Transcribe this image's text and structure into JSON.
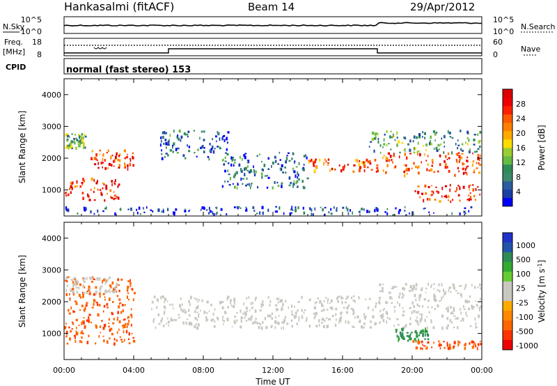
{
  "header": {
    "station": "Hankasalmi (fitACF)",
    "beam": "Beam 14",
    "date": "29/Apr/2012"
  },
  "strip_labels": {
    "nsky": "N.Sky",
    "nsearch": "N.Search",
    "freq_1": "Freq.",
    "freq_2": "[MHz]",
    "nave": "Nave",
    "cpid": "CPID",
    "program": "normal (fast stereo) 153",
    "nsky_ticks": [
      "10^5",
      "10^0"
    ],
    "nsearch_ticks": [
      "10^5",
      "10^0"
    ],
    "freq_ticks": [
      "18",
      "8"
    ],
    "nave_ticks": [
      "60",
      "0"
    ]
  },
  "colorbars": {
    "power": {
      "label": "Power [dB]",
      "ticks": [
        "28",
        "24",
        "20",
        "16",
        "12",
        "8",
        "4"
      ],
      "colors": [
        "#0000ff",
        "#1a3fa5",
        "#2a5d9e",
        "#3b8a6b",
        "#2e8b57",
        "#66bb44",
        "#9acd32",
        "#ffdd00",
        "#ffaa00",
        "#ff8000",
        "#ff5a00",
        "#ff2000",
        "#ee0000",
        "#dd0000"
      ]
    },
    "velocity": {
      "label": "Velocity [m s",
      "label_sup": "-1",
      "label_end": "]",
      "ticks": [
        "1000",
        "500",
        "100",
        "25",
        "-25",
        "-100",
        "-500",
        "-1000"
      ],
      "colors": [
        "#2233cc",
        "#2255aa",
        "#2e8b57",
        "#33aa33",
        "#66cc33",
        "#c8c8c0",
        "#c8c8c0",
        "#ffaa00",
        "#ff8800",
        "#ff6600",
        "#ff3300",
        "#ee0000"
      ]
    }
  },
  "chart_data": [
    {
      "type": "heatmap",
      "name": "power-panel",
      "xlabel": "",
      "ylabel": "Slant Range [km]",
      "xlim": [
        0,
        24
      ],
      "ylim": [
        180,
        4500
      ],
      "yticks": [
        "1000",
        "2000",
        "3000",
        "4000"
      ],
      "xticks": [
        "00:00",
        "04:00",
        "08:00",
        "12:00",
        "16:00",
        "20:00",
        "00:00"
      ],
      "regions": [
        {
          "name": "early-evening-layer",
          "t": [
            0.0,
            1.2
          ],
          "r": [
            2350,
            2800
          ],
          "level": 0.35
        },
        {
          "name": "early-near-range-echo",
          "t": [
            0.0,
            3.2
          ],
          "r": [
            700,
            1400
          ],
          "level": 0.85
        },
        {
          "name": "early-mid-echo",
          "t": [
            1.5,
            4.0
          ],
          "r": [
            1700,
            2300
          ],
          "level": 0.8
        },
        {
          "name": "night-scatter",
          "t": [
            5.5,
            9.5
          ],
          "r": [
            2000,
            2900
          ],
          "level": 0.15
        },
        {
          "name": "midday-band",
          "t": [
            9.0,
            14.0
          ],
          "r": [
            1100,
            2200
          ],
          "level": 0.2
        },
        {
          "name": "afternoon-band",
          "t": [
            14.0,
            18.0
          ],
          "r": [
            1600,
            2000
          ],
          "level": 0.75
        },
        {
          "name": "evening-band",
          "t": [
            18.0,
            24.0
          ],
          "r": [
            1500,
            2200
          ],
          "level": 0.8
        },
        {
          "name": "late-near-range-echo",
          "t": [
            20.0,
            24.0
          ],
          "r": [
            650,
            1200
          ],
          "level": 0.85
        },
        {
          "name": "late-far-range-echo",
          "t": [
            17.5,
            24.0
          ],
          "r": [
            2200,
            2900
          ],
          "level": 0.3
        },
        {
          "name": "ground-clutter",
          "t": [
            0.0,
            24.0
          ],
          "r": [
            200,
            500
          ],
          "level": 0.1
        }
      ]
    },
    {
      "type": "heatmap",
      "name": "velocity-panel",
      "xlabel": "Time UT",
      "ylabel": "Slant Range [km]",
      "xlim": [
        0,
        24
      ],
      "ylim": [
        180,
        4500
      ],
      "yticks": [
        "1000",
        "2000",
        "3000",
        "4000"
      ],
      "xticks": [
        "00:00",
        "04:00",
        "08:00",
        "12:00",
        "16:00",
        "20:00",
        "00:00"
      ],
      "regions": [
        {
          "name": "early-flow",
          "t": [
            0.0,
            4.0
          ],
          "r": [
            700,
            2800
          ],
          "velocity": -250
        },
        {
          "name": "early-ground-scatter",
          "t": [
            0.0,
            3.0
          ],
          "r": [
            2300,
            2800
          ],
          "velocity": 0
        },
        {
          "name": "midday-ground-scatter",
          "t": [
            5.0,
            18.0
          ],
          "r": [
            1200,
            2200
          ],
          "velocity": 0
        },
        {
          "name": "evening-ground-scatter",
          "t": [
            18.0,
            24.0
          ],
          "r": [
            1200,
            2600
          ],
          "velocity": 0
        },
        {
          "name": "evening-flow",
          "t": [
            19.0,
            21.0
          ],
          "r": [
            800,
            1200
          ],
          "velocity": 120
        },
        {
          "name": "late-flow",
          "t": [
            20.0,
            24.0
          ],
          "r": [
            550,
            800
          ],
          "velocity": -300
        }
      ]
    }
  ]
}
